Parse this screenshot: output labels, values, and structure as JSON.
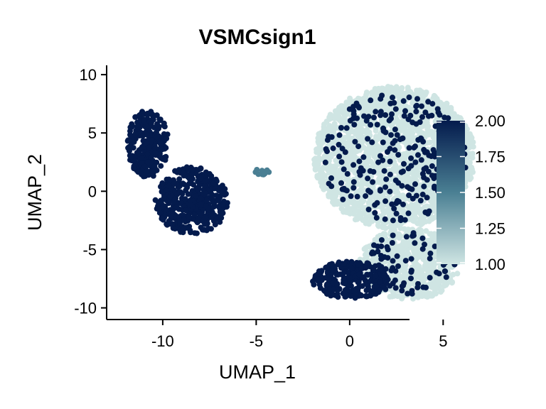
{
  "chart_data": {
    "type": "scatter",
    "title": "VSMCsign1",
    "xlabel": "UMAP_1",
    "ylabel": "UMAP_2",
    "xlim": [
      -13,
      3.2
    ],
    "ylim": [
      -11,
      10.8
    ],
    "xticks": [
      -10,
      -5,
      0,
      5
    ],
    "xtick_labels": [
      "-10",
      "-5",
      "0",
      "5"
    ],
    "yticks": [
      -10,
      -5,
      0,
      5,
      10
    ],
    "ytick_labels": [
      "-10",
      "-5",
      "0",
      "5",
      "10"
    ],
    "grid": false,
    "legend_position": "right",
    "colorbar": {
      "min": 1.0,
      "max": 2.0,
      "ticks": [
        1.0,
        1.25,
        1.5,
        1.75,
        2.0
      ],
      "tick_labels": [
        "1.00",
        "1.25",
        "1.50",
        "1.75",
        "2.00"
      ],
      "low_color": "#cfe5e3",
      "mid_color": "#4a7f93",
      "high_color": "#041b4d"
    },
    "clusters": [
      {
        "x": [
          -11.9,
          -9.7
        ],
        "y": [
          1.2,
          7.0
        ],
        "value": 2.0
      },
      {
        "x": [
          -10.4,
          -6.5
        ],
        "y": [
          -3.7,
          2.1
        ],
        "value": 2.0
      },
      {
        "x": [
          -5.2,
          -4.2
        ],
        "y": [
          1.4,
          1.9
        ],
        "value": 1.5
      },
      {
        "x": [
          -1.9,
          6.7
        ],
        "y": [
          -3.2,
          9.0
        ],
        "value": 1.0
      },
      {
        "x": [
          0.5,
          5.9
        ],
        "y": [
          -9.3,
          -3.2
        ],
        "value": 1.0
      },
      {
        "x": [
          -2.0,
          2.1
        ],
        "y": [
          -9.2,
          -6.0
        ],
        "value": 2.0
      }
    ]
  }
}
